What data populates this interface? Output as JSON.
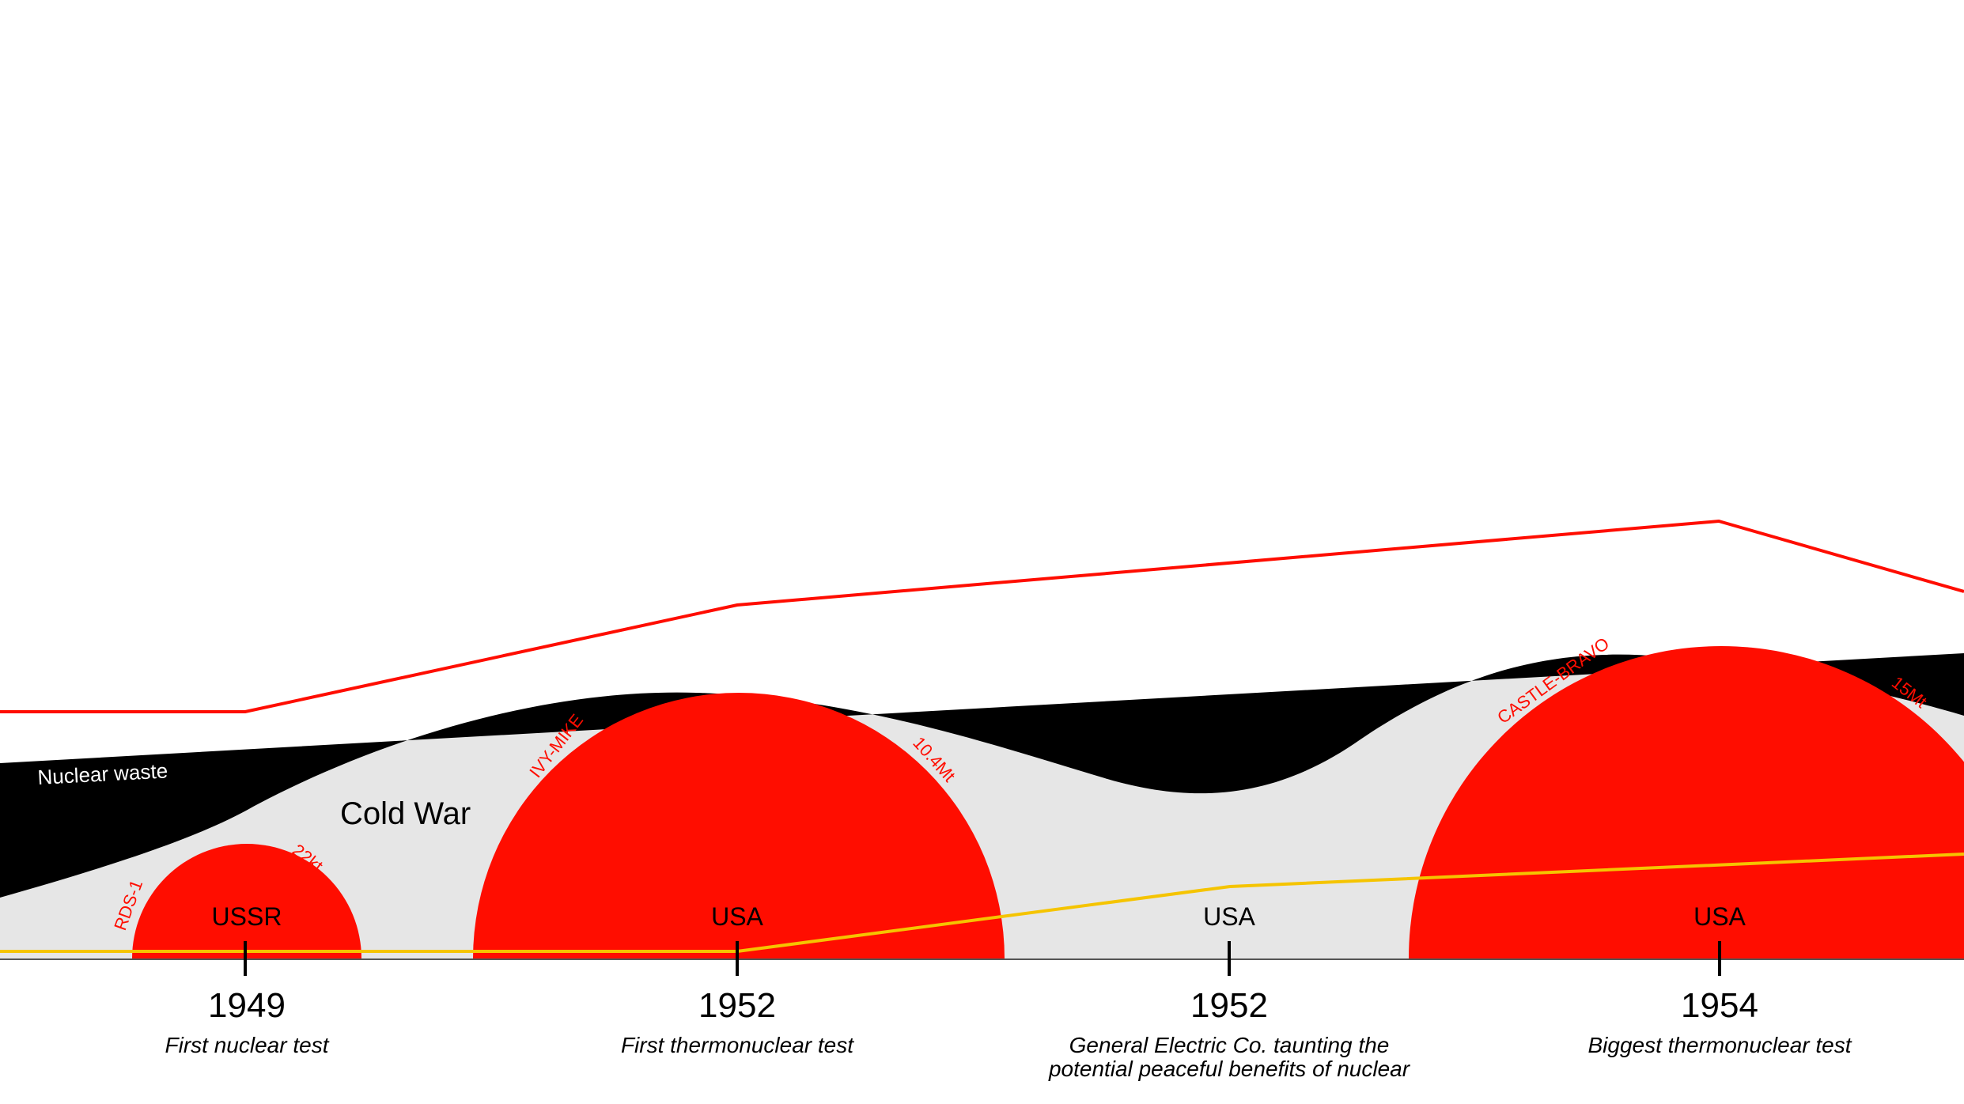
{
  "colors": {
    "test_red": "#ff0d00",
    "waste_black": "#000000",
    "cold_war_gray": "#e6e6e6",
    "yellow_line": "#f5c400",
    "background": "#ffffff"
  },
  "labels": {
    "cold_war": "Cold War",
    "nuclear_waste": "Nuclear waste"
  },
  "events": [
    {
      "year": "1949",
      "country": "USSR",
      "caption_lines": [
        "First nuclear test"
      ],
      "test_name": "RDS-1",
      "yield": "22kt"
    },
    {
      "year": "1952",
      "country": "USA",
      "caption_lines": [
        "First thermonuclear test"
      ],
      "test_name": "IVY-MIKE",
      "yield": "10.4Mt"
    },
    {
      "year": "1952",
      "country": "USA",
      "caption_lines": [
        "General Electric Co. taunting the",
        "potential peaceful benefits of nuclear"
      ]
    },
    {
      "year": "1954",
      "country": "USA",
      "caption_lines": [
        "Biggest thermonuclear test"
      ],
      "test_name": "CASTLE-BRAVO",
      "yield": "15Mt"
    }
  ]
}
